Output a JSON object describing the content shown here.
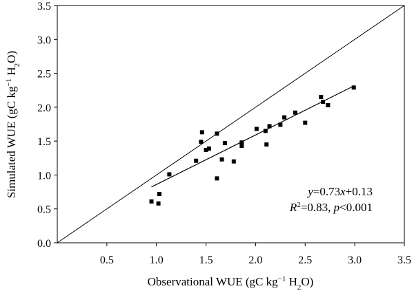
{
  "chart_data": {
    "type": "scatter",
    "title": "",
    "xlabel_parts": [
      "Observational WUE (gC kg",
      "−1",
      " H",
      "2",
      "O)"
    ],
    "ylabel_parts": [
      "Simulated WUE (gC kg",
      "−1",
      " H",
      "2",
      "O)"
    ],
    "xlim": [
      0,
      3.5
    ],
    "ylim": [
      0,
      3.5
    ],
    "x_ticks": [
      0.5,
      1.0,
      1.5,
      2.0,
      2.5,
      3.0,
      3.5
    ],
    "x_tick_labels": [
      "0.5",
      "1.0",
      "1.5",
      "2.0",
      "2.5",
      "3.0",
      "3.5"
    ],
    "y_ticks": [
      0.0,
      0.5,
      1.0,
      1.5,
      2.0,
      2.5,
      3.0,
      3.5
    ],
    "y_tick_labels": [
      "0.0",
      "0.5",
      "1.0",
      "1.5",
      "2.0",
      "2.5",
      "3.0",
      "3.5"
    ],
    "grid": false,
    "marker": "square",
    "marker_color": "#000000",
    "points": [
      {
        "x": 0.95,
        "y": 0.61
      },
      {
        "x": 1.02,
        "y": 0.58
      },
      {
        "x": 1.03,
        "y": 0.72
      },
      {
        "x": 1.13,
        "y": 1.01
      },
      {
        "x": 1.4,
        "y": 1.21
      },
      {
        "x": 1.45,
        "y": 1.49
      },
      {
        "x": 1.46,
        "y": 1.63
      },
      {
        "x": 1.5,
        "y": 1.37
      },
      {
        "x": 1.53,
        "y": 1.39
      },
      {
        "x": 1.61,
        "y": 1.61
      },
      {
        "x": 1.61,
        "y": 0.95
      },
      {
        "x": 1.66,
        "y": 1.23
      },
      {
        "x": 1.69,
        "y": 1.47
      },
      {
        "x": 1.78,
        "y": 1.2
      },
      {
        "x": 1.86,
        "y": 1.48
      },
      {
        "x": 1.86,
        "y": 1.43
      },
      {
        "x": 2.01,
        "y": 1.68
      },
      {
        "x": 2.1,
        "y": 1.65
      },
      {
        "x": 2.11,
        "y": 1.45
      },
      {
        "x": 2.14,
        "y": 1.72
      },
      {
        "x": 2.25,
        "y": 1.74
      },
      {
        "x": 2.29,
        "y": 1.85
      },
      {
        "x": 2.4,
        "y": 1.92
      },
      {
        "x": 2.5,
        "y": 1.77
      },
      {
        "x": 2.66,
        "y": 2.15
      },
      {
        "x": 2.68,
        "y": 2.08
      },
      {
        "x": 2.73,
        "y": 2.03
      },
      {
        "x": 2.99,
        "y": 2.29
      }
    ],
    "one_to_one_line": {
      "x": [
        0,
        3.5
      ],
      "y": [
        0,
        3.5
      ]
    },
    "fit_line": {
      "slope": 0.73,
      "intercept": 0.13,
      "x": [
        0.95,
        2.99
      ]
    },
    "annotation": {
      "eq_parts": [
        "y",
        "=0.73",
        "x",
        "+0.13"
      ],
      "stat_parts": [
        "R",
        "2",
        "=0.83, ",
        "p",
        "<0.001"
      ]
    }
  }
}
